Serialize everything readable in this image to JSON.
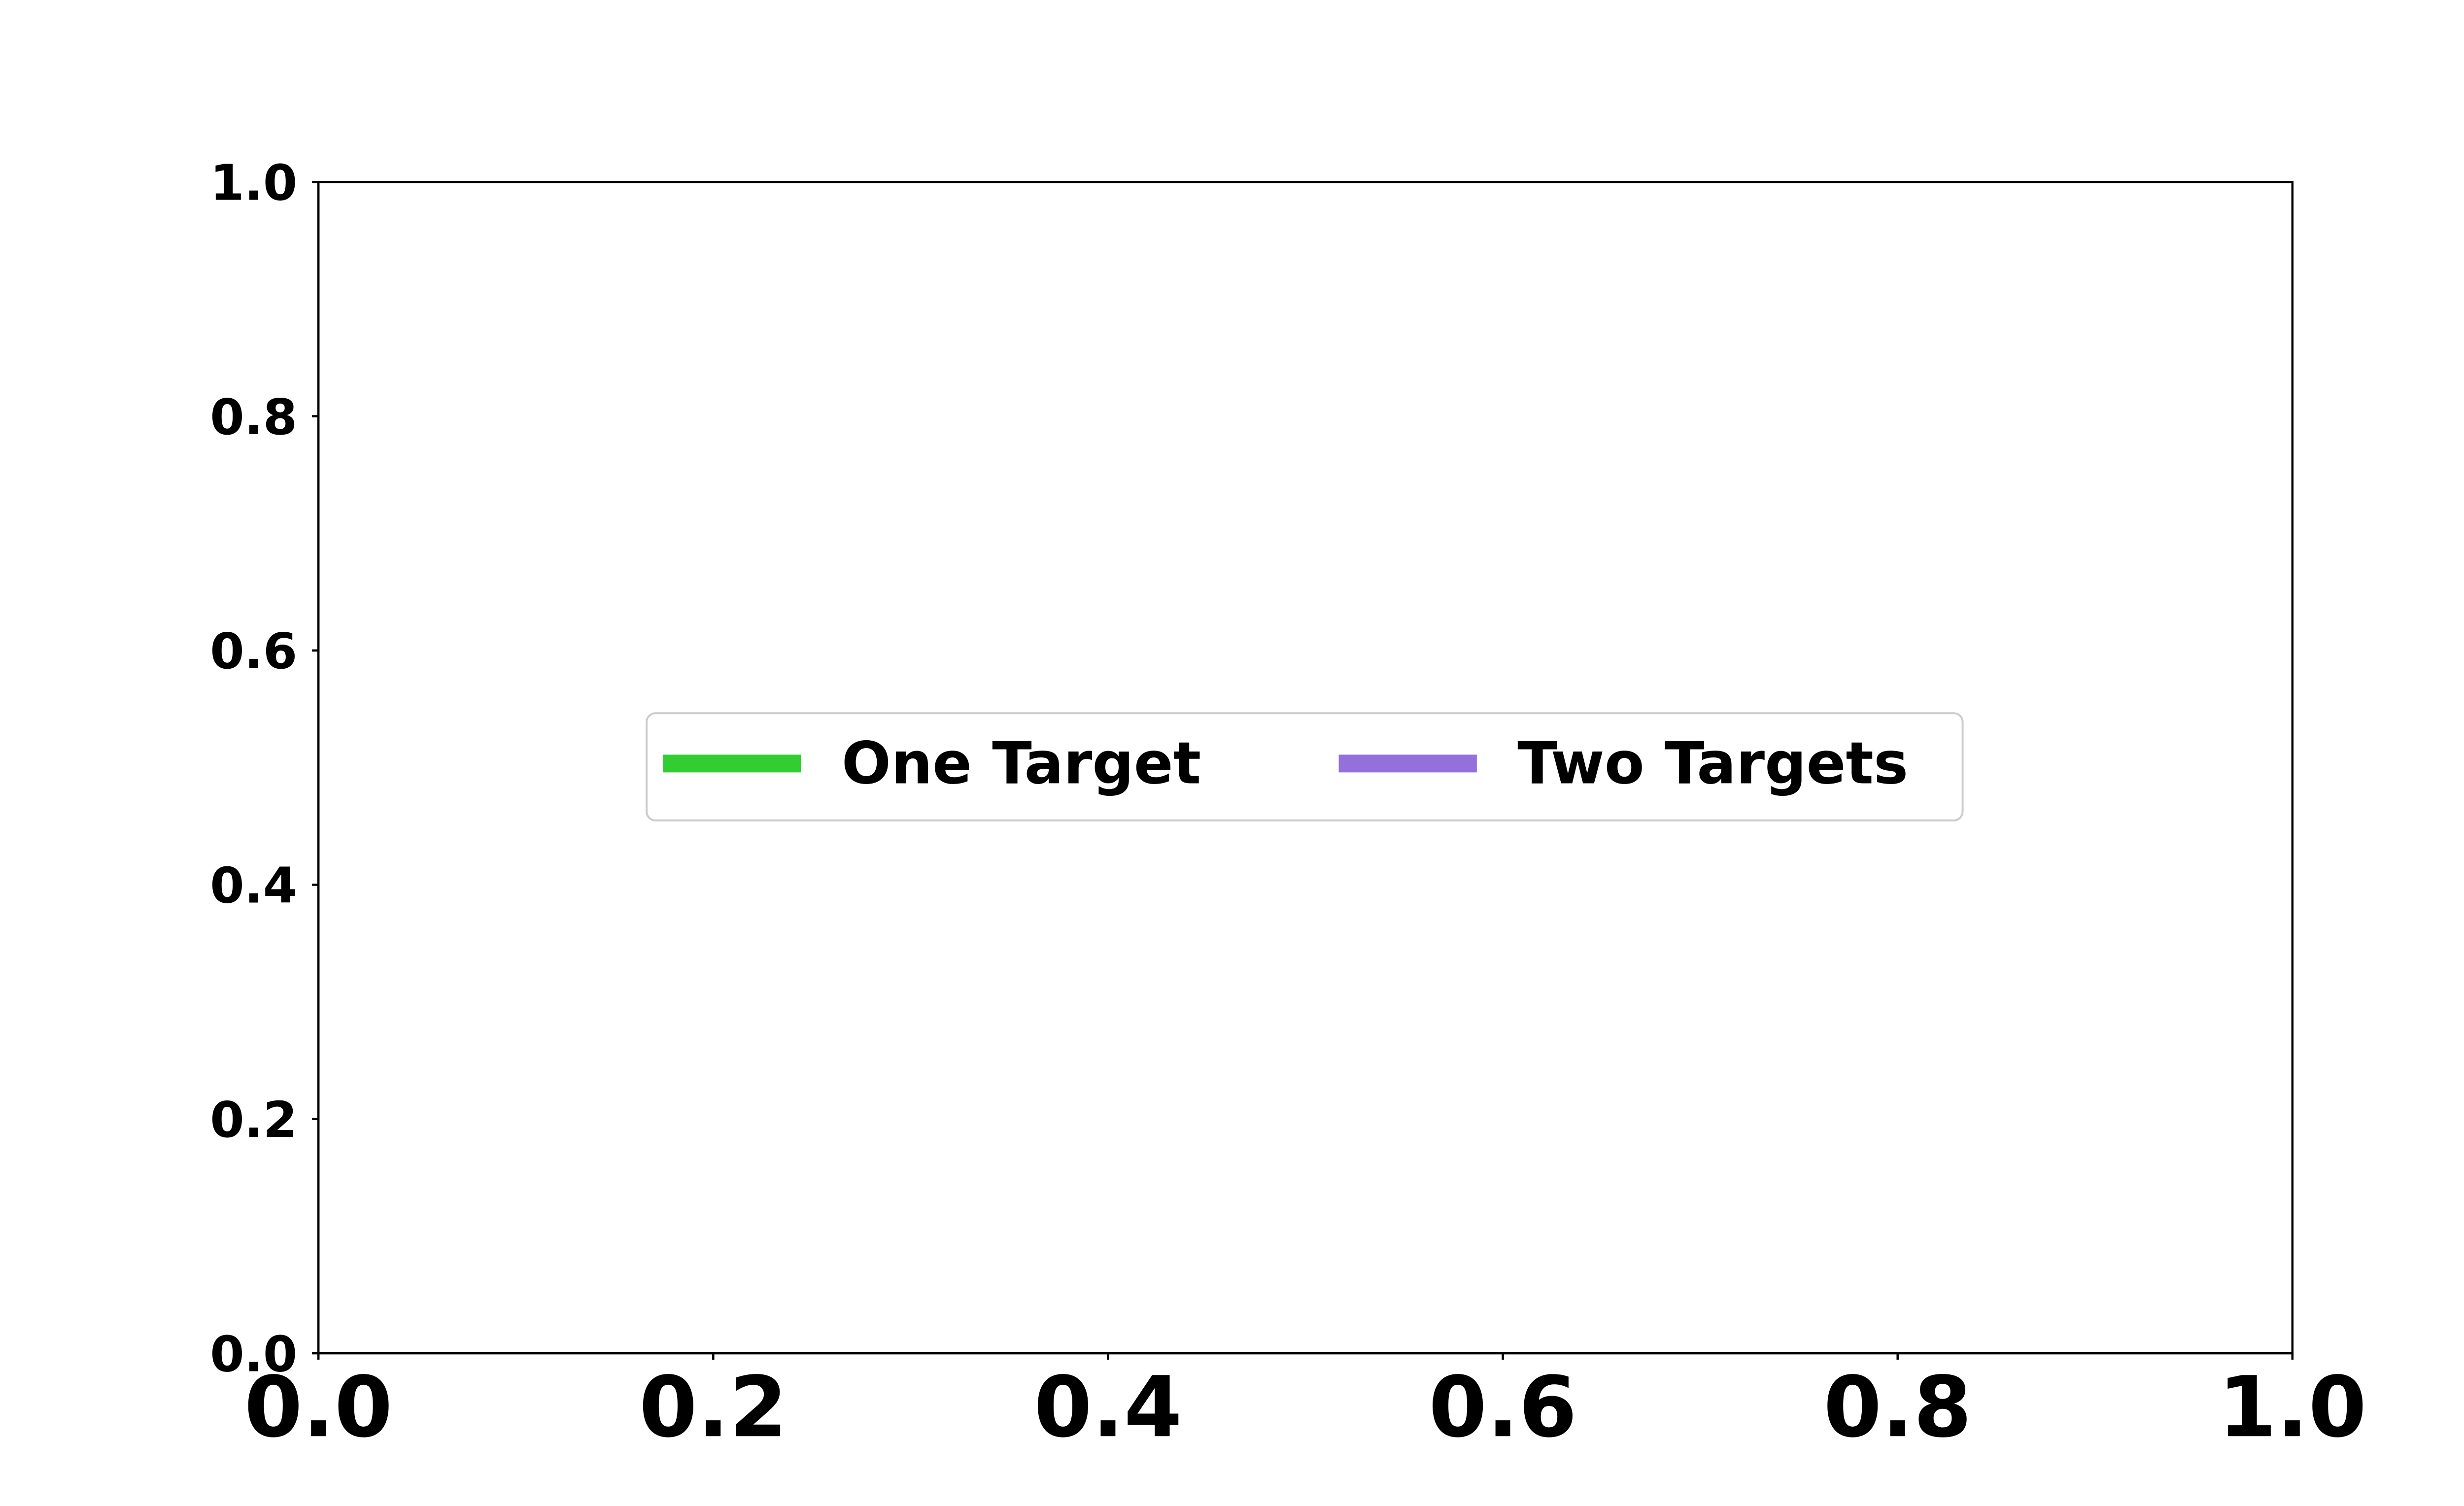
{
  "chart_data": {
    "type": "line",
    "title": "",
    "xlabel": "",
    "ylabel": "",
    "xlim": [
      0.0,
      1.0
    ],
    "ylim": [
      0.0,
      1.0
    ],
    "x_ticks": [
      "0.0",
      "0.2",
      "0.4",
      "0.6",
      "0.8",
      "1.0"
    ],
    "y_ticks": [
      "0.0",
      "0.2",
      "0.4",
      "0.6",
      "0.8",
      "1.0"
    ],
    "grid": false,
    "legend_position": "center",
    "series": [
      {
        "name": "One Target",
        "color": "#32cd32",
        "x": [],
        "y": []
      },
      {
        "name": "Two Targets",
        "color": "#9370db",
        "x": [],
        "y": []
      }
    ]
  }
}
